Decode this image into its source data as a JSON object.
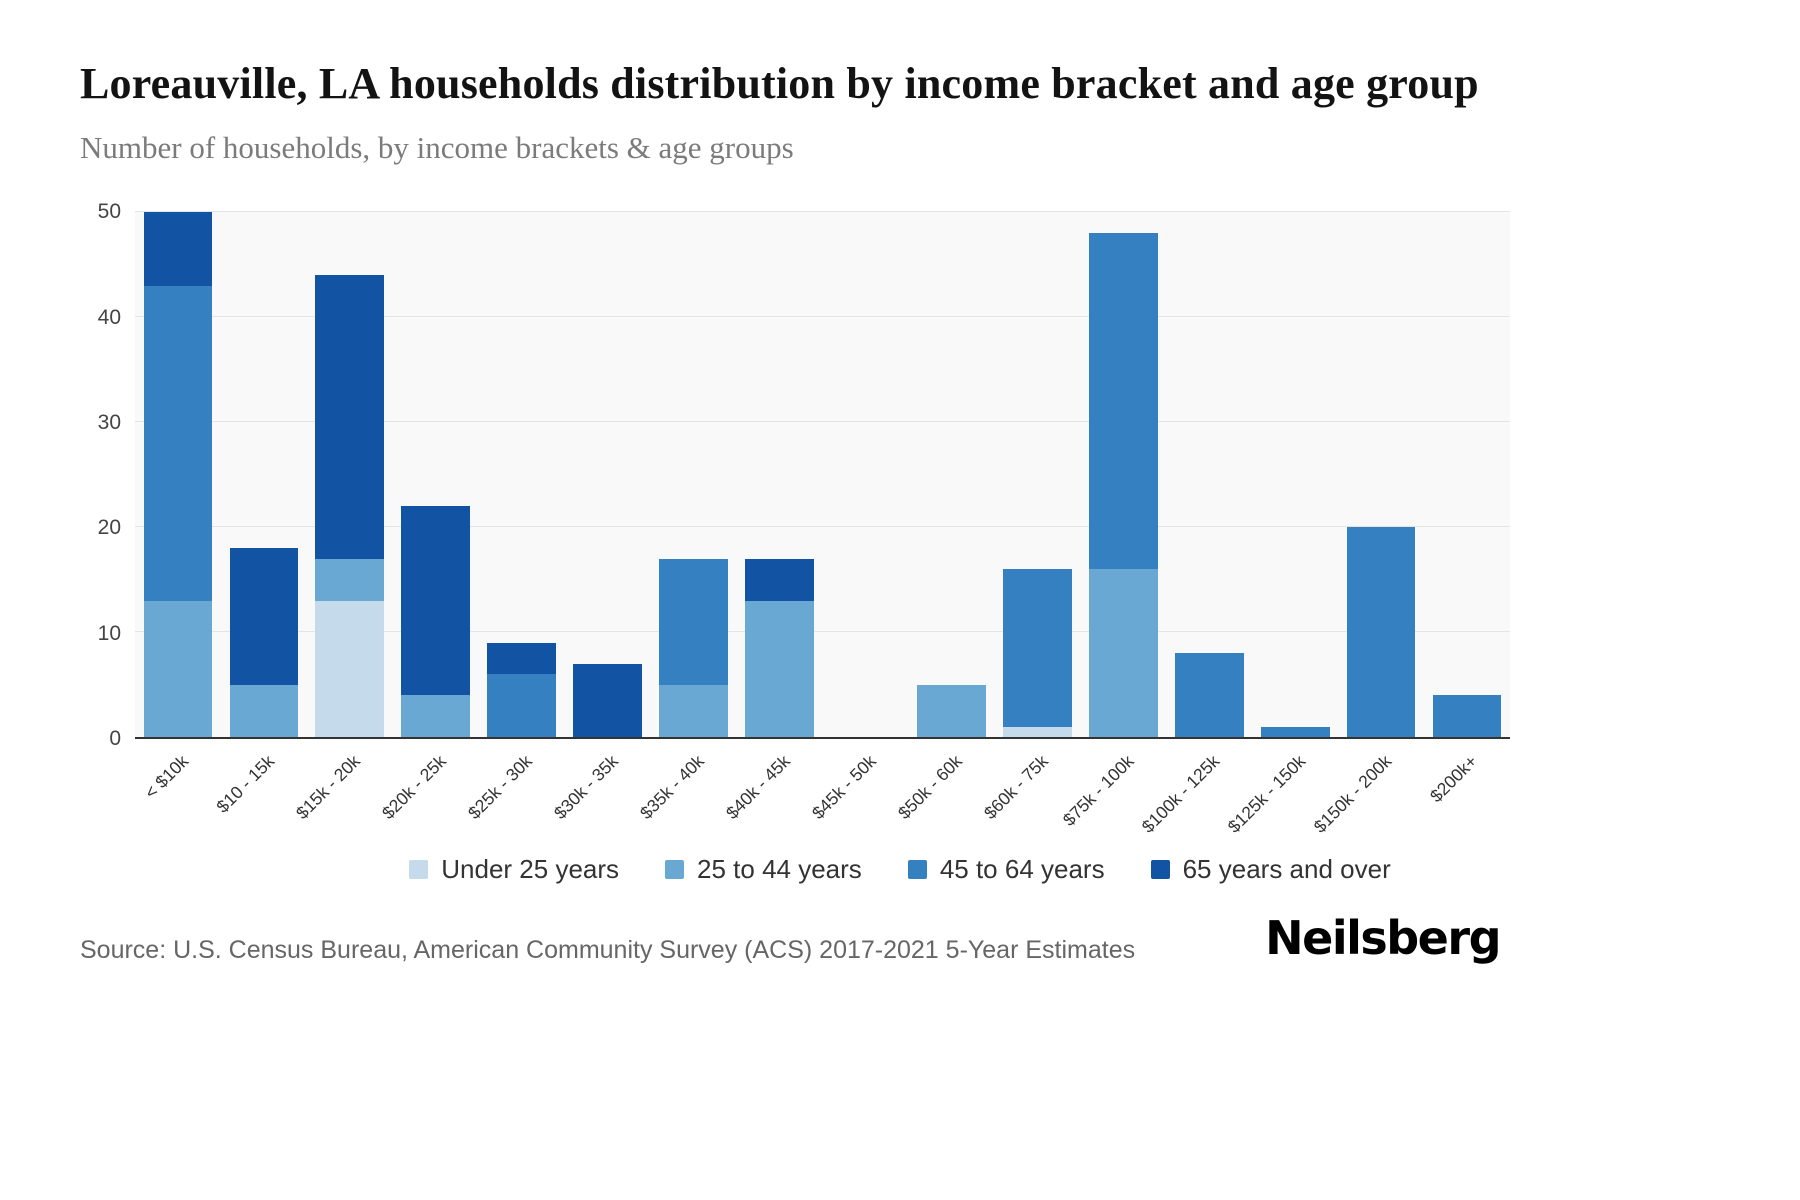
{
  "header": {
    "title": "Loreauville, LA households distribution by income bracket and age group",
    "subtitle": "Number of households, by income brackets & age groups"
  },
  "chart_data": {
    "type": "bar",
    "stacked": true,
    "title": "Loreauville, LA households distribution by income bracket and age group",
    "subtitle": "Number of households, by income brackets & age groups",
    "xlabel": "",
    "ylabel": "Number of households",
    "ylim": [
      0,
      50
    ],
    "yticks": [
      0,
      10,
      20,
      30,
      40,
      50
    ],
    "grid": true,
    "legend_position": "bottom",
    "categories": [
      "< $10k",
      "$10 - 15k",
      "$15k - 20k",
      "$20k - 25k",
      "$25k - 30k",
      "$30k - 35k",
      "$35k - 40k",
      "$40k - 45k",
      "$45k - 50k",
      "$50k - 60k",
      "$60k - 75k",
      "$75k - 100k",
      "$100k - 125k",
      "$125k - 150k",
      "$150k - 200k",
      "$200k+"
    ],
    "series": [
      {
        "name": "Under 25 years",
        "color": "#c5dbeb",
        "values": [
          0,
          0,
          13,
          0,
          0,
          0,
          0,
          0,
          0,
          0,
          1,
          0,
          0,
          0,
          0,
          0
        ]
      },
      {
        "name": "25 to 44 years",
        "color": "#6aa8d4",
        "values": [
          13,
          5,
          4,
          4,
          0,
          0,
          5,
          13,
          0,
          5,
          0,
          16,
          0,
          0,
          0,
          0
        ]
      },
      {
        "name": "45 to 64 years",
        "color": "#3580c0",
        "values": [
          30,
          0,
          0,
          0,
          6,
          0,
          12,
          0,
          0,
          0,
          15,
          32,
          8,
          1,
          20,
          4
        ]
      },
      {
        "name": "65 years and over",
        "color": "#1353a4",
        "values": [
          7,
          13,
          27,
          18,
          3,
          7,
          0,
          4,
          0,
          0,
          0,
          0,
          0,
          0,
          0,
          0
        ]
      }
    ],
    "totals": [
      50,
      18,
      44,
      22,
      9,
      7,
      17,
      17,
      0,
      5,
      16,
      48,
      8,
      1,
      20,
      4
    ]
  },
  "footer": {
    "source": "Source: U.S. Census Bureau, American Community Survey (ACS) 2017-2021 5-Year Estimates",
    "logo": "Neilsberg"
  }
}
